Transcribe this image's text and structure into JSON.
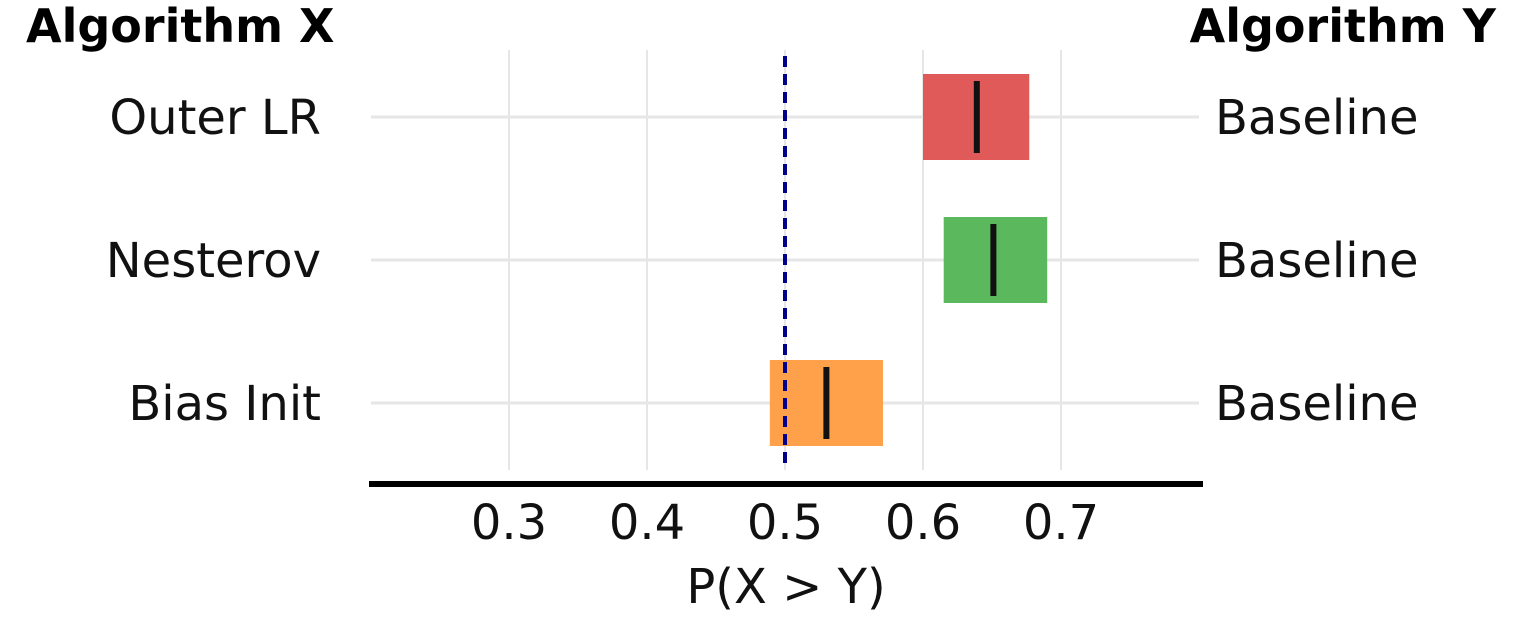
{
  "header": {
    "left_title": "Algorithm X",
    "right_title": "Algorithm Y"
  },
  "chart_data": {
    "type": "interval",
    "xlabel": "P(X > Y)",
    "xlim": [
      0.2,
      0.8
    ],
    "xticks": [
      0.3,
      0.4,
      0.5,
      0.6,
      0.7
    ],
    "tick_labels": [
      "0.3",
      "0.4",
      "0.5",
      "0.6",
      "0.7"
    ],
    "reference_line": {
      "x": 0.5,
      "style": "dashed",
      "color": "#00008b"
    },
    "grid": true,
    "rows": [
      {
        "algorithm_x": "Outer LR",
        "algorithm_y": "Baseline",
        "low": 0.6,
        "high": 0.677,
        "median": 0.639,
        "color": "#e05a5a"
      },
      {
        "algorithm_x": "Nesterov",
        "algorithm_y": "Baseline",
        "low": 0.615,
        "high": 0.69,
        "median": 0.651,
        "color": "#5cb85c"
      },
      {
        "algorithm_x": "Bias Init",
        "algorithm_y": "Baseline",
        "low": 0.489,
        "high": 0.571,
        "median": 0.53,
        "color": "#ffa04a"
      }
    ]
  }
}
